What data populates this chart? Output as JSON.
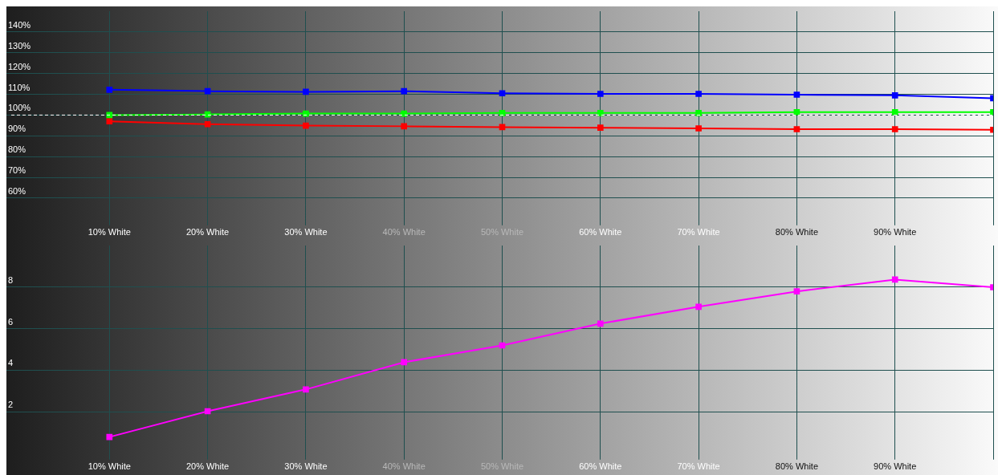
{
  "chart_data": [
    {
      "type": "line",
      "x": [
        10,
        20,
        30,
        40,
        50,
        60,
        70,
        80,
        90,
        100
      ],
      "xlim": [
        0,
        100
      ],
      "xticks": [
        {
          "value": 10,
          "label": "10% White"
        },
        {
          "value": 20,
          "label": "20% White"
        },
        {
          "value": 30,
          "label": "30% White"
        },
        {
          "value": 40,
          "label": "40% White"
        },
        {
          "value": 50,
          "label": "50% White"
        },
        {
          "value": 60,
          "label": "60% White"
        },
        {
          "value": 70,
          "label": "70% White"
        },
        {
          "value": 80,
          "label": "80% White"
        },
        {
          "value": 90,
          "label": "90% White"
        },
        {
          "value": 100,
          "label": null
        }
      ],
      "ylim": [
        50,
        150
      ],
      "yticks": [
        {
          "value": 60,
          "label": "60%"
        },
        {
          "value": 70,
          "label": "70%"
        },
        {
          "value": 80,
          "label": "80%"
        },
        {
          "value": 90,
          "label": "90%"
        },
        {
          "value": 100,
          "label": "100%"
        },
        {
          "value": 110,
          "label": "110%"
        },
        {
          "value": 120,
          "label": "120%"
        },
        {
          "value": 130,
          "label": "130%"
        },
        {
          "value": 140,
          "label": "140%"
        }
      ],
      "series": [
        {
          "color": "#0000ff",
          "values": [
            112.2,
            111.5,
            111.2,
            111.5,
            110.5,
            110.2,
            110.2,
            109.8,
            109.5,
            108.1
          ]
        },
        {
          "color": "#00ff00",
          "values": [
            100.0,
            100.3,
            100.7,
            100.7,
            101.0,
            101.0,
            101.0,
            101.4,
            101.4,
            101.4
          ]
        },
        {
          "color": "#ff0000",
          "values": [
            97.0,
            95.6,
            94.9,
            94.6,
            94.2,
            93.9,
            93.6,
            93.2,
            93.2,
            92.9
          ]
        }
      ],
      "ref_lines": [
        {
          "axis": "y",
          "value": 100,
          "color": "#ffffff",
          "line_style": "dashed"
        }
      ],
      "grid": true,
      "marker": "square",
      "legend": false
    },
    {
      "type": "line",
      "x": [
        10,
        20,
        30,
        40,
        50,
        60,
        70,
        80,
        90,
        100
      ],
      "xlim": [
        0,
        100
      ],
      "xticks": [
        {
          "value": 10,
          "label": "10% White"
        },
        {
          "value": 20,
          "label": "20% White"
        },
        {
          "value": 30,
          "label": "30% White"
        },
        {
          "value": 40,
          "label": "40% White"
        },
        {
          "value": 50,
          "label": "50% White"
        },
        {
          "value": 60,
          "label": "60% White"
        },
        {
          "value": 70,
          "label": "70% White"
        },
        {
          "value": 80,
          "label": "80% White"
        },
        {
          "value": 90,
          "label": "90% White"
        },
        {
          "value": 100,
          "label": null
        }
      ],
      "ylim": [
        0,
        10
      ],
      "yticks": [
        2,
        4,
        6,
        8
      ],
      "series": [
        {
          "color": "#ff00ff",
          "values": [
            0.78,
            2.02,
            3.07,
            4.38,
            5.19,
            6.24,
            7.05,
            7.79,
            8.36,
            7.99
          ]
        }
      ],
      "grid": true,
      "marker": "square",
      "legend": false
    }
  ]
}
